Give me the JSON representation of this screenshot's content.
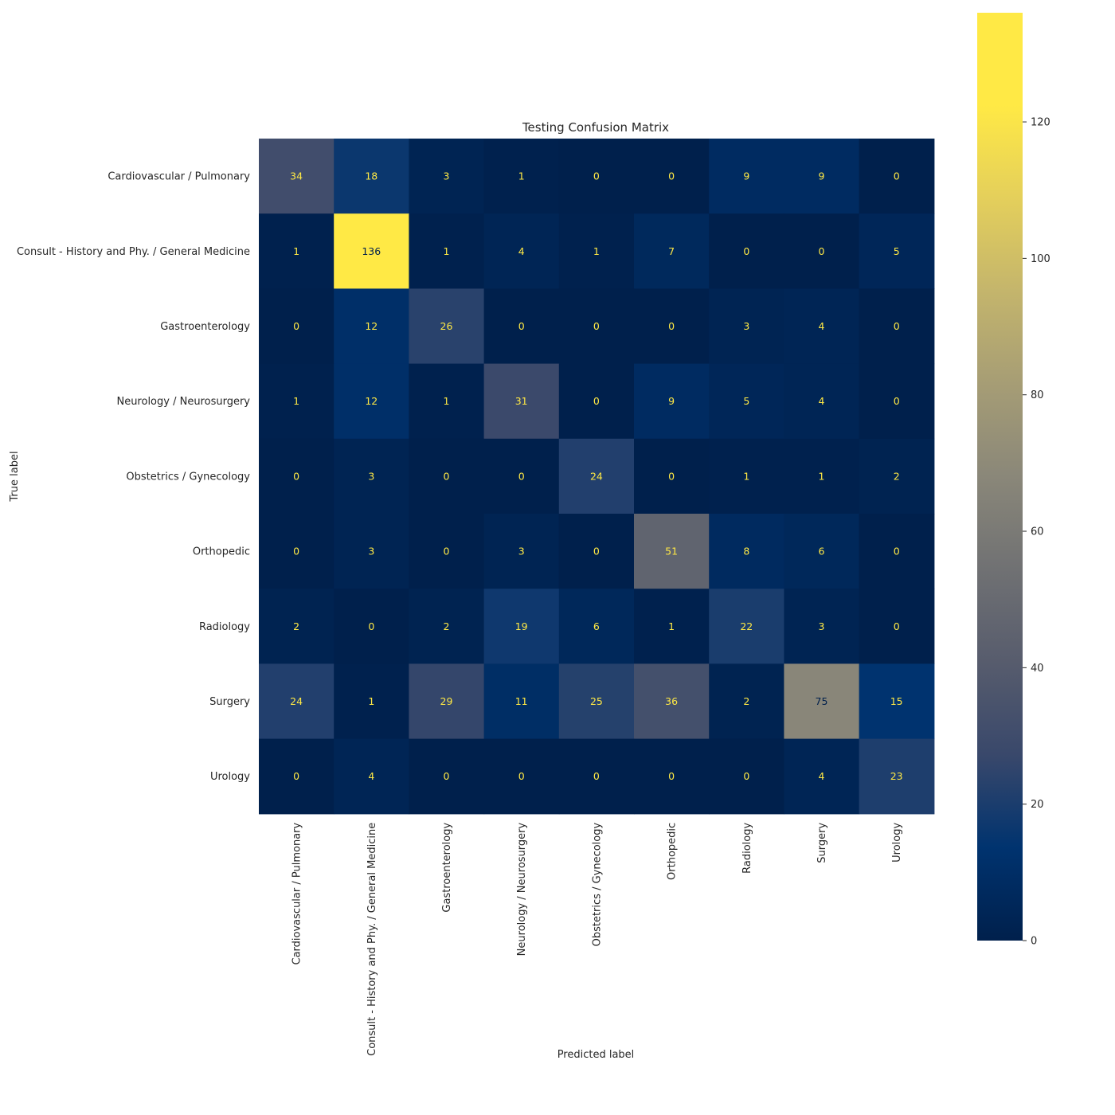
{
  "chart_data": {
    "type": "heatmap",
    "title": "Testing Confusion Matrix",
    "xlabel": "Predicted label",
    "ylabel": "True label",
    "colormap": "cividis",
    "x_categories": [
      "Cardiovascular / Pulmonary",
      "Consult - History and Phy. / General Medicine",
      "Gastroenterology",
      "Neurology / Neurosurgery",
      "Obstetrics / Gynecology",
      "Orthopedic",
      "Radiology",
      "Surgery",
      "Urology"
    ],
    "y_categories": [
      "Cardiovascular / Pulmonary",
      "Consult - History and Phy. / General Medicine",
      "Gastroenterology",
      "Neurology / Neurosurgery",
      "Obstetrics / Gynecology",
      "Orthopedic",
      "Radiology",
      "Surgery",
      "Urology"
    ],
    "values": [
      [
        34,
        18,
        3,
        1,
        0,
        0,
        9,
        9,
        0
      ],
      [
        1,
        136,
        1,
        4,
        1,
        7,
        0,
        0,
        5
      ],
      [
        0,
        12,
        26,
        0,
        0,
        0,
        3,
        4,
        0
      ],
      [
        1,
        12,
        1,
        31,
        0,
        9,
        5,
        4,
        0
      ],
      [
        0,
        3,
        0,
        0,
        24,
        0,
        1,
        1,
        2
      ],
      [
        0,
        3,
        0,
        3,
        0,
        51,
        8,
        6,
        0
      ],
      [
        2,
        0,
        2,
        19,
        6,
        1,
        22,
        3,
        0
      ],
      [
        24,
        1,
        29,
        11,
        25,
        36,
        2,
        75,
        15
      ],
      [
        0,
        4,
        0,
        0,
        0,
        0,
        0,
        4,
        23
      ]
    ],
    "colorbar": {
      "range": [
        0,
        136
      ],
      "ticks": [
        0,
        20,
        40,
        60,
        80,
        100,
        120
      ]
    },
    "annotation_colors": {
      "on_dark": "#FFE945",
      "on_light": "#00204C"
    },
    "grid": false
  }
}
